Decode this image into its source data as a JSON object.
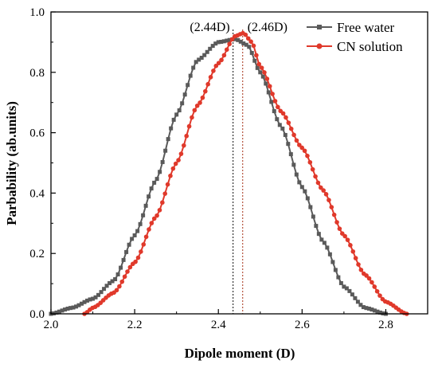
{
  "chart_data": {
    "type": "line",
    "xlabel": "Dipole moment (D)",
    "ylabel": "Parbability (ab.units)",
    "xlim": [
      2.0,
      2.9
    ],
    "ylim": [
      0.0,
      1.0
    ],
    "xticks": [
      "2.0",
      "2.2",
      "2.4",
      "2.6",
      "2.8"
    ],
    "yticks": [
      "0.0",
      "0.2",
      "0.4",
      "0.6",
      "0.8",
      "1.0"
    ],
    "legend_position": "top-right",
    "grid": false,
    "annotations": [
      {
        "text": "(2.44D)",
        "x": 2.435
      },
      {
        "text": "(2.46D)",
        "x": 2.458
      }
    ],
    "series": [
      {
        "name": "Free water",
        "color": "#5a5a5a",
        "marker": "square",
        "x": [
          2.0,
          2.05,
          2.1,
          2.15,
          2.2,
          2.25,
          2.3,
          2.35,
          2.4,
          2.44,
          2.47,
          2.5,
          2.55,
          2.6,
          2.65,
          2.7,
          2.75,
          2.8
        ],
        "y": [
          0.0,
          0.02,
          0.05,
          0.11,
          0.26,
          0.44,
          0.66,
          0.84,
          0.9,
          0.91,
          0.89,
          0.8,
          0.62,
          0.42,
          0.24,
          0.09,
          0.02,
          0.0
        ]
      },
      {
        "name": "CN solution",
        "color": "#e0392b",
        "marker": "circle",
        "x": [
          2.08,
          2.1,
          2.15,
          2.2,
          2.25,
          2.3,
          2.35,
          2.4,
          2.44,
          2.46,
          2.48,
          2.5,
          2.55,
          2.6,
          2.65,
          2.7,
          2.75,
          2.8,
          2.85
        ],
        "y": [
          0.0,
          0.02,
          0.07,
          0.17,
          0.32,
          0.5,
          0.69,
          0.83,
          0.92,
          0.93,
          0.9,
          0.82,
          0.67,
          0.55,
          0.41,
          0.26,
          0.13,
          0.04,
          0.0
        ]
      }
    ]
  }
}
